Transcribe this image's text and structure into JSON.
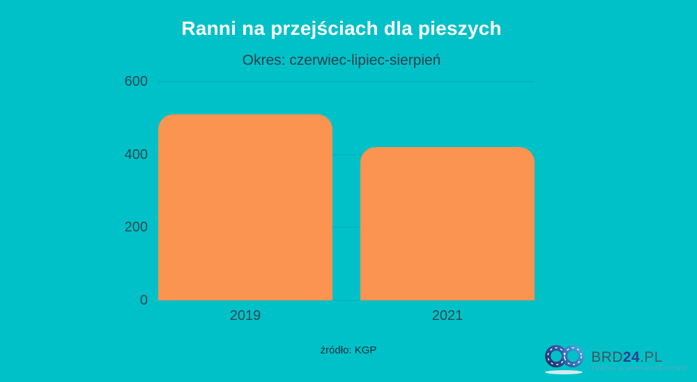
{
  "chart_data": {
    "type": "bar",
    "title": "Ranni na przejściach dla pieszych",
    "subtitle": "Okres: czerwiec-lipiec-sierpień",
    "categories": [
      "2019",
      "2021"
    ],
    "values": [
      510,
      420
    ],
    "xlabel": "",
    "ylabel": "",
    "ylim": [
      0,
      600
    ],
    "yticks": [
      0,
      200,
      400,
      600
    ],
    "grid": true,
    "legend": false,
    "bar_color": "#fb9351",
    "background_color": "#00c1c8"
  },
  "footer": {
    "source": "źródło: KGP"
  },
  "logo": {
    "icon": "infinity-road-icon",
    "brand_prefix": "BRD",
    "brand_number": "24",
    "brand_suffix": ".PL",
    "tagline": "PORTAL O BEZPIECZEŃSTWIE",
    "colors": {
      "icon_dark_blue": "#2a3f7e",
      "icon_light_blue": "#44a7de",
      "brand_text": "#42525e",
      "brand_accent": "#2e3f8a",
      "tagline_text": "#7f9ab8"
    }
  }
}
